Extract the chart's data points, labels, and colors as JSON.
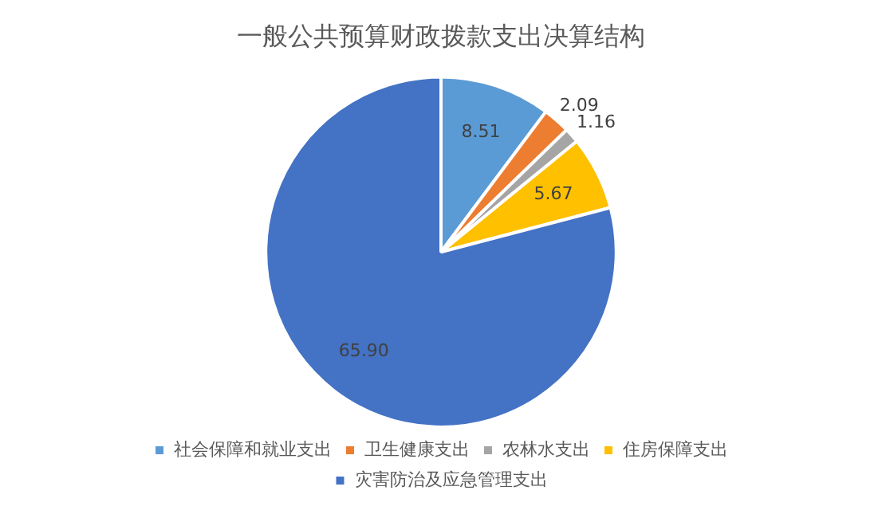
{
  "chart_data": {
    "type": "pie",
    "title": "一般公共预算财政拨款支出决算结构",
    "categories": [
      "社会保障和就业支出",
      "卫生健康支出",
      "农林水支出",
      "住房保障支出",
      "灾害防治及应急管理支出"
    ],
    "values": [
      8.51,
      2.09,
      1.16,
      5.67,
      65.9
    ],
    "value_labels": [
      "8.51",
      "2.09",
      "1.16",
      "5.67",
      "65.90"
    ],
    "colors": [
      "#5b9bd5",
      "#ed7d31",
      "#a5a5a5",
      "#ffc000",
      "#4472c4"
    ],
    "legend": "bottom"
  }
}
